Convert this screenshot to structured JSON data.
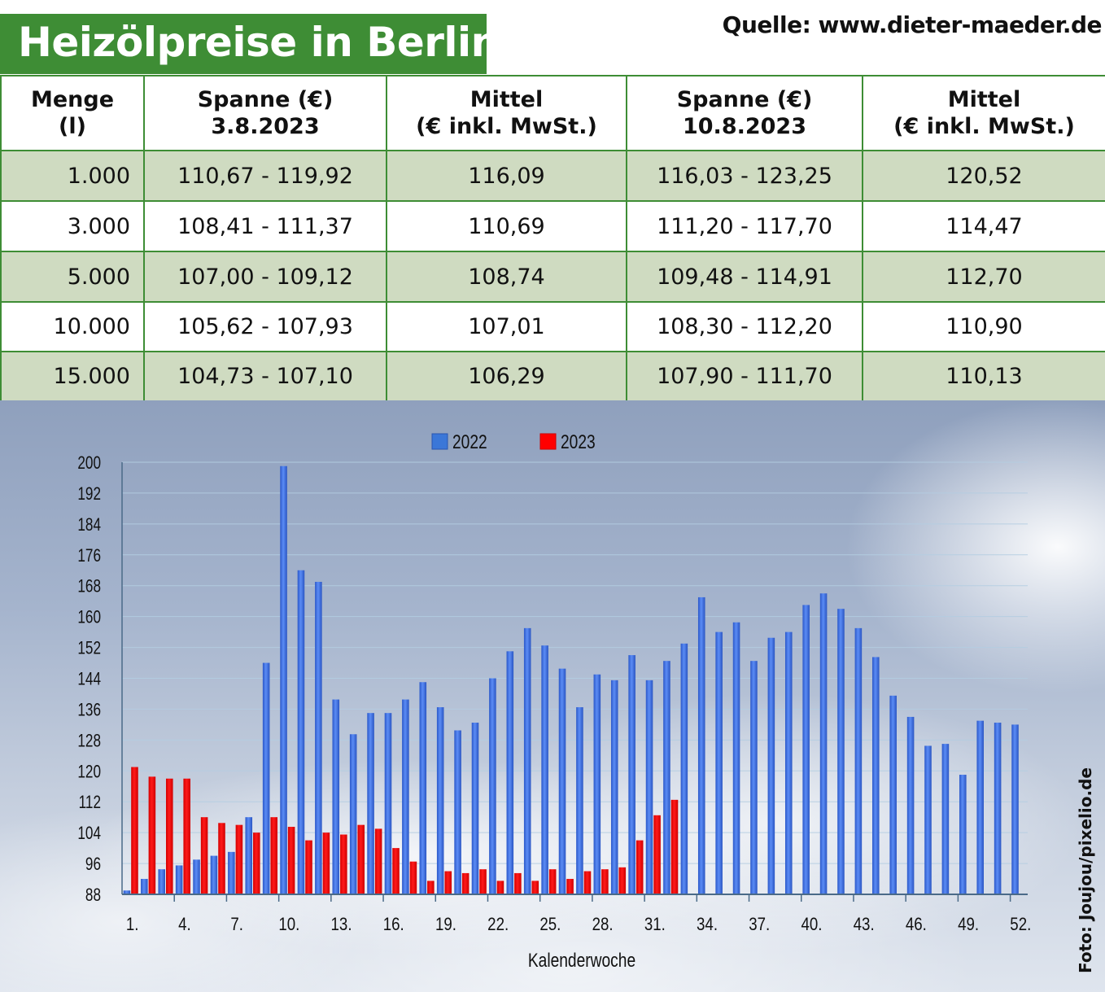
{
  "header": {
    "title": "Heizölpreise in Berlin",
    "source": "Quelle: www.dieter-maeder.de"
  },
  "table": {
    "headers": [
      [
        "Menge",
        "(l)"
      ],
      [
        "Spanne (€)",
        "3.8.2023"
      ],
      [
        "Mittel",
        "(€ inkl. MwSt.)"
      ],
      [
        "Spanne (€)",
        "10.8.2023"
      ],
      [
        "Mittel",
        "(€ inkl. MwSt.)"
      ]
    ],
    "rows": [
      [
        "1.000",
        "110,67 - 119,92",
        "116,09",
        "116,03 - 123,25",
        "120,52"
      ],
      [
        "3.000",
        "108,41 - 111,37",
        "110,69",
        "111,20 - 117,70",
        "114,47"
      ],
      [
        "5.000",
        "107,00 - 109,12",
        "108,74",
        "109,48 - 114,91",
        "112,70"
      ],
      [
        "10.000",
        "105,62 - 107,93",
        "107,01",
        "108,30 - 112,20",
        "110,90"
      ],
      [
        "15.000",
        "104,73 - 107,10",
        "106,29",
        "107,90 - 111,70",
        "110,13"
      ]
    ]
  },
  "chart_data": {
    "type": "bar",
    "xlabel": "Kalenderwoche",
    "ylabel": "",
    "ylim": [
      88,
      200
    ],
    "yticks": [
      88,
      96,
      104,
      112,
      120,
      128,
      136,
      144,
      152,
      160,
      168,
      176,
      184,
      192,
      200
    ],
    "xtick_labels": [
      "1.",
      "4.",
      "7.",
      "10.",
      "13.",
      "16.",
      "19.",
      "22.",
      "25.",
      "28.",
      "31.",
      "34.",
      "37.",
      "40.",
      "43.",
      "46.",
      "49.",
      "52."
    ],
    "categories": [
      1,
      2,
      3,
      4,
      5,
      6,
      7,
      8,
      9,
      10,
      11,
      12,
      13,
      14,
      15,
      16,
      17,
      18,
      19,
      20,
      21,
      22,
      23,
      24,
      25,
      26,
      27,
      28,
      29,
      30,
      31,
      32,
      33,
      34,
      35,
      36,
      37,
      38,
      39,
      40,
      41,
      42,
      43,
      44,
      45,
      46,
      47,
      48,
      49,
      50,
      51,
      52
    ],
    "legend_position": "top-center",
    "series": [
      {
        "name": "2022",
        "color": "#3b6fe0",
        "values": [
          89,
          92,
          94.5,
          95.5,
          97,
          98,
          99,
          108,
          148,
          199,
          172,
          169,
          138.5,
          129.5,
          135,
          135,
          138.5,
          143,
          136.5,
          130.5,
          132.5,
          144,
          151,
          157,
          152.5,
          146.5,
          136.5,
          145,
          143.5,
          150,
          143.5,
          148.5,
          153,
          165,
          156,
          158.5,
          148.5,
          154.5,
          156,
          163,
          166,
          162,
          157,
          149.5,
          139.5,
          134,
          126.5,
          127,
          119,
          133,
          132.5,
          132
        ]
      },
      {
        "name": "2023",
        "color": "#ff0000",
        "values": [
          121,
          118.5,
          118,
          118,
          108,
          106.5,
          106,
          104,
          108,
          105.5,
          102,
          104,
          103.5,
          106,
          105,
          100,
          96.5,
          91.5,
          94,
          93.5,
          94.5,
          91.5,
          93.5,
          91.5,
          94.5,
          92,
          94,
          94.5,
          95,
          102,
          108.5,
          112.5,
          null,
          null,
          null,
          null,
          null,
          null,
          null,
          null,
          null,
          null,
          null,
          null,
          null,
          null,
          null,
          null,
          null,
          null,
          null,
          null
        ]
      }
    ]
  },
  "photo_credit": "Foto: Joujou/pixelio.de"
}
